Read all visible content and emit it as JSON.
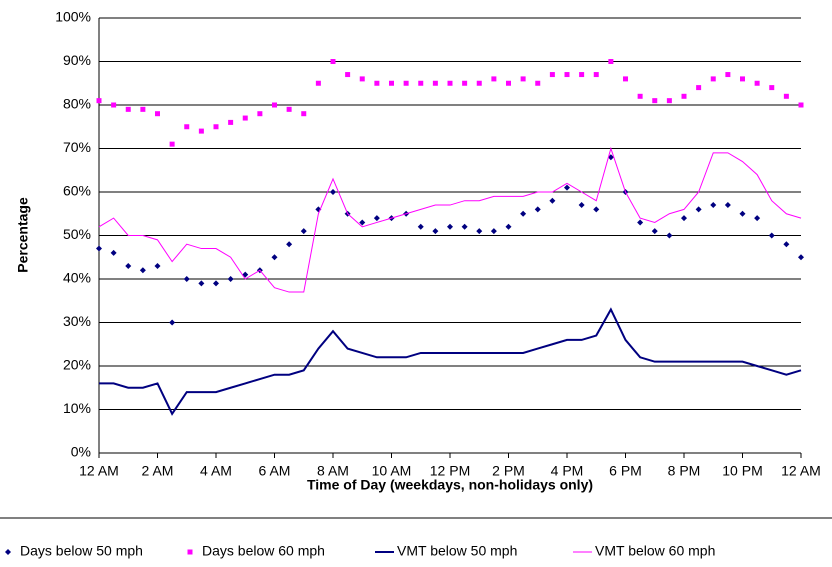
{
  "chart_data": {
    "type": "line",
    "ylabel": "Percentage",
    "xlabel": "Time of Day (weekdays, non-holidays only)",
    "xlim": [
      0,
      24
    ],
    "ylim": [
      0,
      100
    ],
    "xticks": [
      {
        "value": 0,
        "label": "12 AM"
      },
      {
        "value": 2,
        "label": "2 AM"
      },
      {
        "value": 4,
        "label": "4 AM"
      },
      {
        "value": 6,
        "label": "6 AM"
      },
      {
        "value": 8,
        "label": "8 AM"
      },
      {
        "value": 10,
        "label": "10 AM"
      },
      {
        "value": 12,
        "label": "12 PM"
      },
      {
        "value": 14,
        "label": "2 PM"
      },
      {
        "value": 16,
        "label": "4 PM"
      },
      {
        "value": 18,
        "label": "6 PM"
      },
      {
        "value": 20,
        "label": "8 PM"
      },
      {
        "value": 22,
        "label": "10 PM"
      },
      {
        "value": 24,
        "label": "12 AM"
      }
    ],
    "yticks": [
      {
        "value": 0,
        "label": "0%"
      },
      {
        "value": 10,
        "label": "10%"
      },
      {
        "value": 20,
        "label": "20%"
      },
      {
        "value": 30,
        "label": "30%"
      },
      {
        "value": 40,
        "label": "40%"
      },
      {
        "value": 50,
        "label": "50%"
      },
      {
        "value": 60,
        "label": "60%"
      },
      {
        "value": 70,
        "label": "70%"
      },
      {
        "value": 80,
        "label": "80%"
      },
      {
        "value": 90,
        "label": "90%"
      },
      {
        "value": 100,
        "label": "100%"
      }
    ],
    "grid": true,
    "legend": "bottom",
    "x": [
      0,
      0.5,
      1,
      1.5,
      2,
      2.5,
      3,
      3.5,
      4,
      4.5,
      5,
      5.5,
      6,
      6.5,
      7,
      7.5,
      8,
      8.5,
      9,
      9.5,
      10,
      10.5,
      11,
      11.5,
      12,
      12.5,
      13,
      13.5,
      14,
      14.5,
      15,
      15.5,
      16,
      16.5,
      17,
      17.5,
      18,
      18.5,
      19,
      19.5,
      20,
      20.5,
      21,
      21.5,
      22,
      22.5,
      23,
      23.5,
      24
    ],
    "series": [
      {
        "name": "Days below 50 mph",
        "color": "#000080",
        "mode": "diamond",
        "values": [
          47,
          46,
          43,
          42,
          43,
          30,
          40,
          39,
          39,
          40,
          41,
          42,
          45,
          48,
          51,
          56,
          60,
          55,
          53,
          54,
          54,
          55,
          52,
          51,
          52,
          52,
          51,
          51,
          52,
          55,
          56,
          58,
          61,
          57,
          56,
          68,
          60,
          53,
          51,
          50,
          54,
          56,
          57,
          57,
          55,
          54,
          50,
          48,
          45
        ]
      },
      {
        "name": "Days below 60 mph",
        "color": "#ff00ff",
        "mode": "square",
        "values": [
          81,
          80,
          79,
          79,
          78,
          71,
          75,
          74,
          75,
          76,
          77,
          78,
          80,
          79,
          78,
          85,
          90,
          87,
          86,
          85,
          85,
          85,
          85,
          85,
          85,
          85,
          85,
          86,
          85,
          86,
          85,
          87,
          87,
          87,
          87,
          90,
          86,
          82,
          81,
          81,
          82,
          84,
          86,
          87,
          86,
          85,
          84,
          82,
          80
        ]
      },
      {
        "name": "VMT below 50 mph",
        "color": "#000080",
        "mode": "line",
        "width": 2,
        "values": [
          16,
          16,
          15,
          15,
          16,
          9,
          14,
          14,
          14,
          15,
          16,
          17,
          18,
          18,
          19,
          24,
          28,
          24,
          23,
          22,
          22,
          22,
          23,
          23,
          23,
          23,
          23,
          23,
          23,
          23,
          24,
          25,
          26,
          26,
          27,
          33,
          26,
          22,
          21,
          21,
          21,
          21,
          21,
          21,
          21,
          20,
          19,
          18,
          19
        ]
      },
      {
        "name": "VMT below 60 mph",
        "color": "#ff00ff",
        "mode": "line",
        "width": 1,
        "values": [
          52,
          54,
          50,
          50,
          49,
          44,
          48,
          47,
          47,
          45,
          40,
          42,
          38,
          37,
          37,
          55,
          63,
          55,
          52,
          53,
          54,
          55,
          56,
          57,
          57,
          58,
          58,
          59,
          59,
          59,
          60,
          60,
          62,
          60,
          58,
          70,
          60,
          54,
          53,
          55,
          56,
          60,
          69,
          69,
          67,
          64,
          58,
          55,
          54
        ]
      }
    ]
  }
}
